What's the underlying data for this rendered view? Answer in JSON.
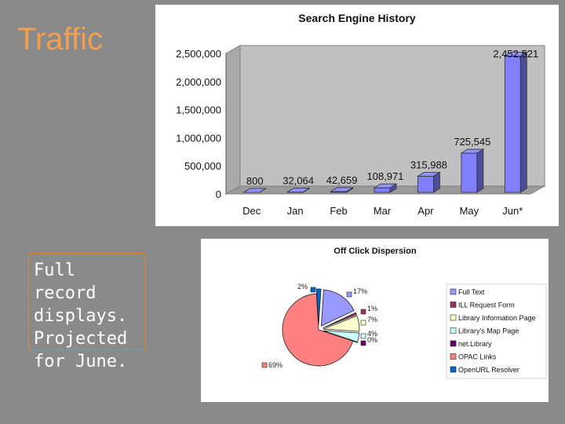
{
  "slide": {
    "title": "Traffic",
    "note": "Full record displays. Projected for June."
  },
  "chart_data": [
    {
      "type": "bar",
      "title": "Search Engine History",
      "categories": [
        "Dec",
        "Jan",
        "Feb",
        "Mar",
        "Apr",
        "May",
        "Jun*"
      ],
      "values": [
        800,
        32064,
        42659,
        108971,
        315988,
        725545,
        2452521
      ],
      "value_labels": [
        "800",
        "32,064",
        "42,659",
        "108,971",
        "315,988",
        "725,545",
        "2,452,521"
      ],
      "yticks": [
        0,
        500000,
        1000000,
        1500000,
        2000000,
        2500000
      ],
      "ytick_labels": [
        "0",
        "500,000",
        "1,000,000",
        "1,500,000",
        "2,000,000",
        "2,500,000"
      ],
      "ylim": [
        0,
        2500000
      ],
      "bar_color": "#8080ff",
      "grid": false,
      "style": "3d"
    },
    {
      "type": "pie",
      "title": "Off Click Dispersion",
      "legend_position": "right",
      "slices": [
        {
          "label": "Full Text",
          "value": 17,
          "pct_label": "17%",
          "color": "#9999ff"
        },
        {
          "label": "ILL Request Form",
          "value": 1,
          "pct_label": "1%",
          "color": "#993366"
        },
        {
          "label": "Library Information Page",
          "value": 7,
          "pct_label": "7%",
          "color": "#ffffcc"
        },
        {
          "label": "Library's Map Page",
          "value": 4,
          "pct_label": "4%",
          "color": "#ccffff"
        },
        {
          "label": "net.Library",
          "value": 0,
          "pct_label": "0%",
          "color": "#660066"
        },
        {
          "label": "OPAC Links",
          "value": 69,
          "pct_label": "69%",
          "color": "#ff8080"
        },
        {
          "label": "OpenURL Resolver",
          "value": 2,
          "pct_label": "2%",
          "color": "#0066cc"
        }
      ]
    }
  ]
}
